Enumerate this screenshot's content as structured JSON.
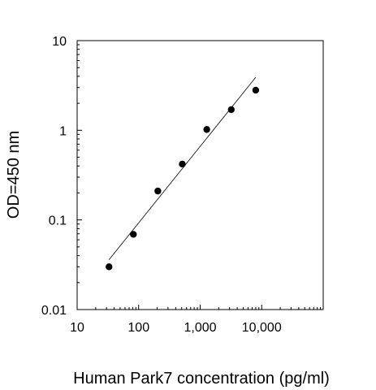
{
  "chart_data": {
    "type": "scatter",
    "title": "",
    "xlabel": "Human Park7 concentration (pg/ml)",
    "ylabel": "OD=450 nm",
    "xscale": "log",
    "yscale": "log",
    "xlim": [
      10,
      100000
    ],
    "ylim": [
      0.01,
      10
    ],
    "grid": false,
    "x_ticks": [
      {
        "value": 10,
        "label": "10"
      },
      {
        "value": 100,
        "label": "100"
      },
      {
        "value": 1000,
        "label": "1,000"
      },
      {
        "value": 10000,
        "label": "10,000"
      }
    ],
    "y_ticks": [
      {
        "value": 0.01,
        "label": "0.01"
      },
      {
        "value": 0.1,
        "label": "0.1"
      },
      {
        "value": 1,
        "label": "1"
      },
      {
        "value": 10,
        "label": "10"
      }
    ],
    "series": [
      {
        "points": [
          {
            "x": 33,
            "y": 0.03
          },
          {
            "x": 82,
            "y": 0.069
          },
          {
            "x": 205,
            "y": 0.21
          },
          {
            "x": 512,
            "y": 0.42
          },
          {
            "x": 1280,
            "y": 1.02
          },
          {
            "x": 3200,
            "y": 1.7
          },
          {
            "x": 8000,
            "y": 2.8
          }
        ],
        "fit_line": [
          {
            "x": 33,
            "y": 0.036
          },
          {
            "x": 8000,
            "y": 3.9
          }
        ]
      }
    ]
  }
}
